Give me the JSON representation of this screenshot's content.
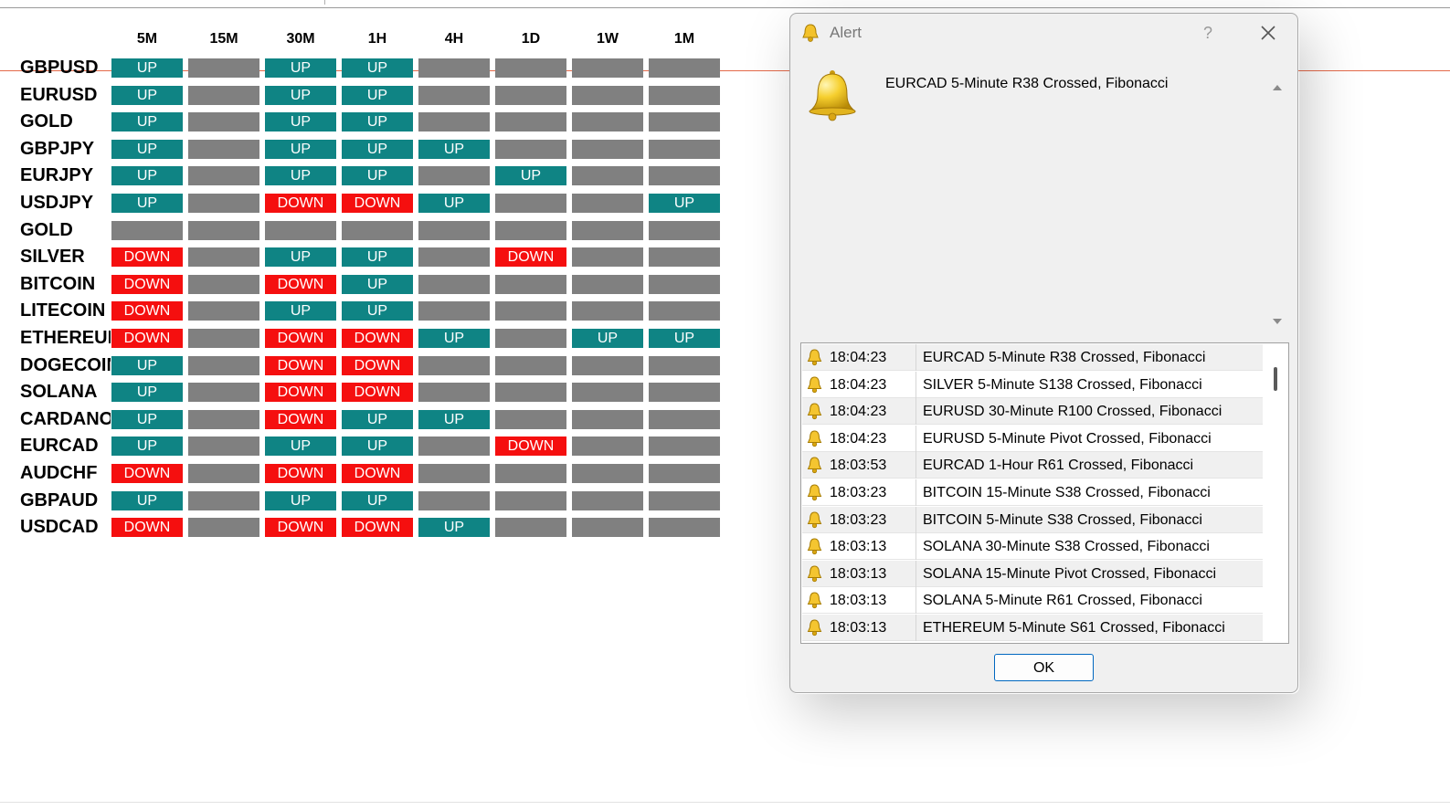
{
  "grid": {
    "headers": [
      "5M",
      "15M",
      "30M",
      "1H",
      "4H",
      "1D",
      "1W",
      "1M"
    ],
    "rows": [
      {
        "symbol": "GBPUSD",
        "cells": [
          "UP",
          "",
          "UP",
          "UP",
          "",
          "",
          "",
          ""
        ]
      },
      {
        "symbol": "EURUSD",
        "cells": [
          "UP",
          "",
          "UP",
          "UP",
          "",
          "",
          "",
          ""
        ]
      },
      {
        "symbol": "GOLD",
        "cells": [
          "UP",
          "",
          "UP",
          "UP",
          "",
          "",
          "",
          ""
        ]
      },
      {
        "symbol": "GBPJPY",
        "cells": [
          "UP",
          "",
          "UP",
          "UP",
          "UP",
          "",
          "",
          ""
        ]
      },
      {
        "symbol": "EURJPY",
        "cells": [
          "UP",
          "",
          "UP",
          "UP",
          "",
          "UP",
          "",
          ""
        ]
      },
      {
        "symbol": "USDJPY",
        "cells": [
          "UP",
          "",
          "DOWN",
          "DOWN",
          "UP",
          "",
          "",
          "UP"
        ]
      },
      {
        "symbol": "GOLD",
        "cells": [
          "",
          "",
          "",
          "",
          "",
          "",
          "",
          ""
        ]
      },
      {
        "symbol": "SILVER",
        "cells": [
          "DOWN",
          "",
          "UP",
          "UP",
          "",
          "DOWN",
          "",
          ""
        ]
      },
      {
        "symbol": "BITCOIN",
        "cells": [
          "DOWN",
          "",
          "DOWN",
          "UP",
          "",
          "",
          "",
          ""
        ]
      },
      {
        "symbol": "LITECOIN",
        "cells": [
          "DOWN",
          "",
          "UP",
          "UP",
          "",
          "",
          "",
          ""
        ]
      },
      {
        "symbol": "ETHEREUM",
        "cells": [
          "DOWN",
          "",
          "DOWN",
          "DOWN",
          "UP",
          "",
          "UP",
          "UP"
        ]
      },
      {
        "symbol": "DOGECOIN",
        "cells": [
          "UP",
          "",
          "DOWN",
          "DOWN",
          "",
          "",
          "",
          ""
        ]
      },
      {
        "symbol": "SOLANA",
        "cells": [
          "UP",
          "",
          "DOWN",
          "DOWN",
          "",
          "",
          "",
          ""
        ]
      },
      {
        "symbol": "CARDANO",
        "cells": [
          "UP",
          "",
          "DOWN",
          "UP",
          "UP",
          "",
          "",
          ""
        ]
      },
      {
        "symbol": "EURCAD",
        "cells": [
          "UP",
          "",
          "UP",
          "UP",
          "",
          "DOWN",
          "",
          ""
        ]
      },
      {
        "symbol": "AUDCHF",
        "cells": [
          "DOWN",
          "",
          "DOWN",
          "DOWN",
          "",
          "",
          "",
          ""
        ]
      },
      {
        "symbol": "GBPAUD",
        "cells": [
          "UP",
          "",
          "UP",
          "UP",
          "",
          "",
          "",
          ""
        ]
      },
      {
        "symbol": "USDCAD",
        "cells": [
          "DOWN",
          "",
          "DOWN",
          "DOWN",
          "UP",
          "",
          "",
          ""
        ]
      }
    ]
  },
  "colors": {
    "up": "#0f8484",
    "down": "#f50f0f",
    "blank": "#808080",
    "price_line": "#e46a4a"
  },
  "dialog": {
    "title": "Alert",
    "help": "?",
    "message": "EURCAD 5-Minute R38 Crossed, Fibonacci",
    "ok_label": "OK",
    "alerts": [
      {
        "time": "18:04:23",
        "message": "EURCAD 5-Minute R38 Crossed, Fibonacci"
      },
      {
        "time": "18:04:23",
        "message": "SILVER 5-Minute S138 Crossed, Fibonacci"
      },
      {
        "time": "18:04:23",
        "message": "EURUSD 30-Minute R100 Crossed, Fibonacci"
      },
      {
        "time": "18:04:23",
        "message": "EURUSD 5-Minute Pivot Crossed, Fibonacci"
      },
      {
        "time": "18:03:53",
        "message": "EURCAD 1-Hour R61 Crossed, Fibonacci"
      },
      {
        "time": "18:03:23",
        "message": "BITCOIN 15-Minute S38 Crossed, Fibonacci"
      },
      {
        "time": "18:03:23",
        "message": "BITCOIN 5-Minute S38 Crossed, Fibonacci"
      },
      {
        "time": "18:03:13",
        "message": "SOLANA 30-Minute S38 Crossed, Fibonacci"
      },
      {
        "time": "18:03:13",
        "message": "SOLANA 15-Minute Pivot Crossed, Fibonacci"
      },
      {
        "time": "18:03:13",
        "message": "SOLANA 5-Minute R61 Crossed, Fibonacci"
      },
      {
        "time": "18:03:13",
        "message": "ETHEREUM 5-Minute S61 Crossed, Fibonacci"
      }
    ]
  }
}
